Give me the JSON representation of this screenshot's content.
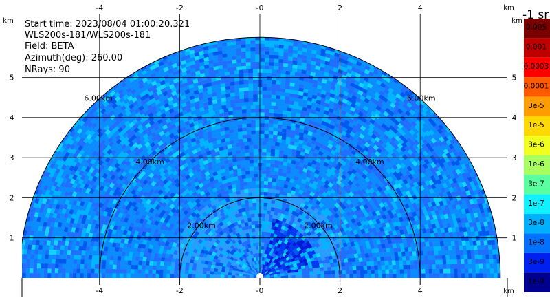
{
  "info": {
    "start_time": "Start time: 2023/08/04 01:00:20.321",
    "instrument": "WLS200s-181/WLS200s-181",
    "field": "Field: BETA",
    "azimuth": "Azimuth(deg): 260.00",
    "nrays": "NRays: 90"
  },
  "colorbar": {
    "unit_label": "-1 sr",
    "labels": [
      "0.005",
      "0.001",
      "0.0003",
      "0.0001",
      "3e-5",
      "1e-5",
      "3e-6",
      "1e-6",
      "3e-7",
      "1e-7",
      "3e-8",
      "1e-8",
      "3e-9",
      "1e-9"
    ],
    "colors": [
      "#7a0000",
      "#c00000",
      "#ff0000",
      "#ff5a00",
      "#ff9c00",
      "#ffd800",
      "#f0ff20",
      "#a8ff60",
      "#5affa0",
      "#10f0ff",
      "#00b0ff",
      "#0070ff",
      "#0020f0",
      "#000090"
    ]
  },
  "chart_data": {
    "type": "heatmap",
    "projection": "polar-sector (RHI)",
    "field": "BETA",
    "units": "-1 sr",
    "x_unit": "km",
    "y_unit": "km",
    "xlim": [
      -6.2,
      6.2
    ],
    "ylim": [
      0,
      6.0
    ],
    "x_ticks": [
      -4,
      -2,
      0,
      2,
      4
    ],
    "y_ticks": [
      1,
      2,
      3,
      4,
      5
    ],
    "x_tick_labels": [
      "-4",
      "-2",
      "-0",
      "2",
      "4"
    ],
    "y_tick_labels": [
      "1",
      "2",
      "3",
      "4",
      "5"
    ],
    "range_rings_km": [
      2,
      4,
      6
    ],
    "range_ring_labels": [
      "2.00km",
      "4.00km",
      "6.00km"
    ],
    "max_range_km": 6.0,
    "grid": true,
    "colorbar_position": "right",
    "colorbar_scale": "log"
  }
}
